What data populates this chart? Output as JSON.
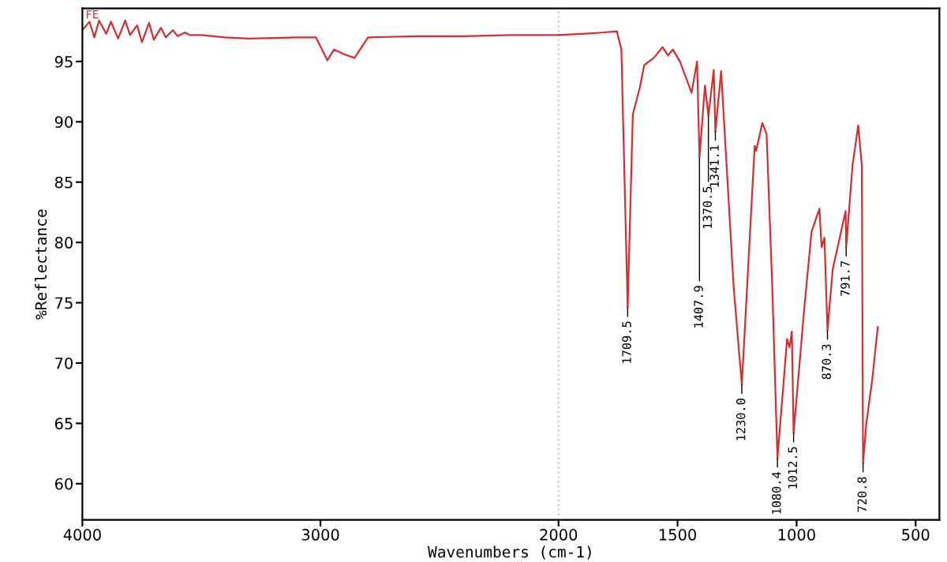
{
  "chart_data": {
    "type": "line",
    "xlabel": "Wavenumbers (cm-1)",
    "ylabel": "%Reflectance",
    "x": [
      4000,
      3970,
      3950,
      3930,
      3900,
      3880,
      3850,
      3820,
      3800,
      3770,
      3750,
      3720,
      3700,
      3670,
      3650,
      3620,
      3600,
      3570,
      3550,
      3500,
      3400,
      3300,
      3100,
      3019,
      2971,
      2943,
      2900,
      2857,
      2800,
      2600,
      2400,
      2200,
      2000,
      1900,
      1817,
      1755,
      1736,
      1709.5,
      1688,
      1659,
      1640,
      1600,
      1563,
      1540,
      1520,
      1490,
      1441,
      1418,
      1407.9,
      1385,
      1370.5,
      1348,
      1341.1,
      1317,
      1264,
      1230.0,
      1176,
      1170,
      1144,
      1126,
      1102,
      1080.4,
      1040,
      1030,
      1020,
      1012.5,
      968,
      937,
      904,
      895,
      883,
      870.3,
      848,
      794,
      791.7,
      765,
      741,
      726,
      720.8,
      707,
      683,
      659
    ],
    "series": [
      {
        "color": "#d03030",
        "values": [
          97.6,
          98.3,
          97.0,
          98.4,
          97.3,
          98.3,
          96.9,
          98.4,
          97.2,
          98.0,
          96.6,
          98.2,
          96.8,
          97.8,
          97.0,
          97.6,
          97.1,
          97.4,
          97.2,
          97.2,
          97.0,
          96.9,
          97.0,
          97.0,
          95.1,
          96.0,
          95.6,
          95.3,
          97.0,
          97.1,
          97.1,
          97.2,
          97.2,
          97.3,
          97.4,
          97.5,
          96.0,
          74.6,
          90.6,
          92.8,
          94.7,
          95.3,
          96.2,
          95.5,
          96.0,
          95.0,
          92.4,
          95.0,
          87.0,
          93.0,
          90.5,
          94.3,
          89.2,
          94.2,
          76.2,
          68.2,
          88.0,
          87.6,
          89.9,
          89.0,
          76.2,
          62.1,
          72.0,
          71.3,
          72.6,
          64.2,
          74.5,
          80.9,
          82.8,
          79.6,
          80.4,
          72.7,
          77.8,
          82.6,
          79.6,
          86.4,
          89.7,
          86.4,
          61.7,
          65.0,
          68.5,
          73.0
        ]
      }
    ],
    "xlim": [
      4000,
      400
    ],
    "ylim": [
      57,
      99.4
    ],
    "xticks": [
      4000,
      3000,
      2000,
      1500,
      1000,
      500
    ],
    "yticks": [
      60,
      65,
      70,
      75,
      80,
      85,
      90,
      95
    ],
    "ref_lines": [
      {
        "axis": "x",
        "value": 2000,
        "line_style": "dotted",
        "color": "#c8c8c8"
      }
    ],
    "grid": false,
    "legend": false,
    "marker": "none",
    "line_style": "solid",
    "annotations": [
      "FE",
      {
        "text": "1709.5",
        "x": 1709.5,
        "y": 74.6
      },
      {
        "text": "1407.9",
        "x": 1407.9,
        "y": 87.0
      },
      {
        "text": "1370.5",
        "x": 1370.5,
        "y": 90.5
      },
      {
        "text": "1341.1",
        "x": 1341.1,
        "y": 89.2
      },
      {
        "text": "1230.0",
        "x": 1230.0,
        "y": 68.2
      },
      {
        "text": "1080.4",
        "x": 1080.4,
        "y": 62.1
      },
      {
        "text": "1012.5",
        "x": 1012.5,
        "y": 64.2
      },
      {
        "text": "870.3",
        "x": 870.3,
        "y": 72.7
      },
      {
        "text": "791.7",
        "x": 791.7,
        "y": 79.6
      },
      {
        "text": "720.8",
        "x": 720.8,
        "y": 61.7
      }
    ]
  }
}
